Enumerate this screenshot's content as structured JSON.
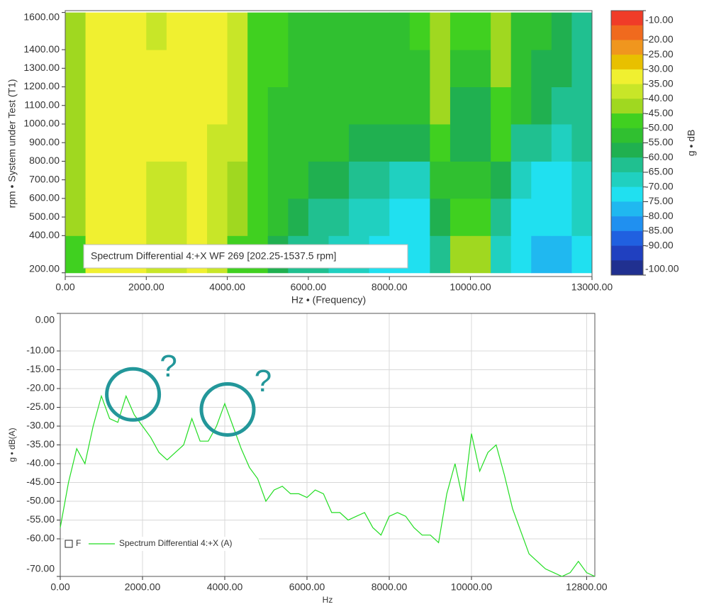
{
  "chart_data": [
    {
      "type": "heatmap",
      "label": "Spectrum Differential 4:+X WF 269 [202.25-1537.5 rpm]",
      "xlabel": "Hz • (Frequency)",
      "ylabel": "rpm • System under Test (T1)",
      "xlim": [
        0,
        13000
      ],
      "ylim": [
        180,
        1610
      ],
      "xticks": [
        {
          "value": 0,
          "label": "0.00"
        },
        {
          "value": 2000,
          "label": "2000.00"
        },
        {
          "value": 4000,
          "label": "4000.00"
        },
        {
          "value": 6000,
          "label": "6000.00"
        },
        {
          "value": 8000,
          "label": "8000.00"
        },
        {
          "value": 10000,
          "label": "10000.00"
        },
        {
          "value": 13000,
          "label": "13000.00"
        }
      ],
      "yticks": [
        {
          "value": 200,
          "label": "200.00"
        },
        {
          "value": 400,
          "label": "400.00"
        },
        {
          "value": 500,
          "label": "500.00"
        },
        {
          "value": 600,
          "label": "600.00"
        },
        {
          "value": 700,
          "label": "700.00"
        },
        {
          "value": 800,
          "label": "800.00"
        },
        {
          "value": 900,
          "label": "900.00"
        },
        {
          "value": 1000,
          "label": "1000.00"
        },
        {
          "value": 1100,
          "label": "1100.00"
        },
        {
          "value": 1200,
          "label": "1200.00"
        },
        {
          "value": 1300,
          "label": "1300.00"
        },
        {
          "value": 1400,
          "label": "1400.00"
        },
        {
          "value": 1600,
          "label": "1600.00"
        }
      ],
      "xbins": [
        0,
        500,
        1000,
        1500,
        2000,
        2500,
        3000,
        3500,
        4000,
        4500,
        5000,
        5500,
        6000,
        6500,
        7000,
        7500,
        8000,
        8500,
        9000,
        9500,
        10000,
        10500,
        11000,
        11500,
        12000,
        12500,
        13000
      ],
      "ybins": [
        200,
        400,
        600,
        800,
        1000,
        1200,
        1400,
        1600
      ],
      "z": [
        [
          -45,
          -33,
          -33,
          -31,
          -35,
          -36,
          -34,
          -36,
          -45,
          -48,
          -56,
          -60,
          -64,
          -66,
          -68,
          -70,
          -72,
          -73,
          -64,
          -42,
          -44,
          -68,
          -74,
          -76,
          -76,
          -70
        ],
        [
          -44,
          -33,
          -33,
          -31,
          -35,
          -35,
          -33,
          -35,
          -42,
          -47,
          -53,
          -56,
          -60,
          -63,
          -65,
          -67,
          -70,
          -70,
          -58,
          -46,
          -47,
          -63,
          -72,
          -74,
          -74,
          -68
        ],
        [
          -44,
          -33,
          -33,
          -31,
          -35,
          -35,
          -33,
          -35,
          -40,
          -47,
          -51,
          -52,
          -55,
          -58,
          -60,
          -62,
          -65,
          -65,
          -50,
          -50,
          -50,
          -55,
          -68,
          -70,
          -70,
          -66
        ],
        [
          -43,
          -32,
          -33,
          -30,
          -34,
          -34,
          -33,
          -35,
          -38,
          -46,
          -50,
          -50,
          -52,
          -54,
          -55,
          -56,
          -58,
          -58,
          -45,
          -55,
          -55,
          -48,
          -60,
          -64,
          -65,
          -64
        ],
        [
          -42,
          -31,
          -32,
          -30,
          -34,
          -34,
          -32,
          -34,
          -37,
          -46,
          -50,
          -50,
          -50,
          -52,
          -52,
          -53,
          -54,
          -54,
          -42,
          -55,
          -55,
          -45,
          -54,
          -58,
          -60,
          -62
        ],
        [
          -42,
          -31,
          -32,
          -30,
          -34,
          -34,
          -32,
          -34,
          -37,
          -46,
          -49,
          -50,
          -50,
          -51,
          -52,
          -52,
          -52,
          -50,
          -40,
          -50,
          -50,
          -42,
          -52,
          -55,
          -57,
          -60
        ],
        [
          -42,
          -32,
          -33,
          -31,
          -35,
          -34,
          -32,
          -34,
          -38,
          -46,
          -49,
          -50,
          -50,
          -51,
          -51,
          -52,
          -52,
          -48,
          -40,
          -46,
          -46,
          -42,
          -50,
          -54,
          -56,
          -60
        ]
      ],
      "colorbar": {
        "label": "g • dB",
        "lim": [
          -100,
          -10
        ],
        "ticks": [
          {
            "value": -10,
            "label": "-10.00"
          },
          {
            "value": -20,
            "label": "-20.00"
          },
          {
            "value": -25,
            "label": "-25.00"
          },
          {
            "value": -30,
            "label": "-30.00"
          },
          {
            "value": -35,
            "label": "-35.00"
          },
          {
            "value": -40,
            "label": "-40.00"
          },
          {
            "value": -45,
            "label": "-45.00"
          },
          {
            "value": -50,
            "label": "-50.00"
          },
          {
            "value": -55,
            "label": "-55.00"
          },
          {
            "value": -60,
            "label": "-60.00"
          },
          {
            "value": -65,
            "label": "-65.00"
          },
          {
            "value": -70,
            "label": "-70.00"
          },
          {
            "value": -75,
            "label": "-75.00"
          },
          {
            "value": -80,
            "label": "-80.00"
          },
          {
            "value": -85,
            "label": "-85.00"
          },
          {
            "value": -90,
            "label": "-90.00"
          },
          {
            "value": -100,
            "label": "-100.00"
          }
        ],
        "colors": [
          "#f03c28",
          "#f06a1e",
          "#f0961e",
          "#e8c000",
          "#f0f030",
          "#c8e628",
          "#a0d820",
          "#40d020",
          "#30c030",
          "#20b050",
          "#20c090",
          "#20d0c0",
          "#20e0f0",
          "#20b8f0",
          "#2090f0",
          "#2060e0",
          "#2040c0",
          "#203090"
        ]
      }
    },
    {
      "type": "line",
      "xlabel": "Hz",
      "ylabel": "g • dB(A)",
      "xlim": [
        0,
        13000
      ],
      "ylim": [
        -70,
        0
      ],
      "grid": true,
      "legend": "lower left",
      "legend_toggle": "F",
      "xticks": [
        {
          "value": 0,
          "label": "0.00"
        },
        {
          "value": 2000,
          "label": "2000.00"
        },
        {
          "value": 4000,
          "label": "4000.00"
        },
        {
          "value": 6000,
          "label": "6000.00"
        },
        {
          "value": 8000,
          "label": "8000.00"
        },
        {
          "value": 10000,
          "label": "10000.00"
        },
        {
          "value": 12800,
          "label": "12800.00"
        }
      ],
      "yticks": [
        {
          "value": 0,
          "label": "0.00"
        },
        {
          "value": -10,
          "label": "-10.00"
        },
        {
          "value": -15,
          "label": "-15.00"
        },
        {
          "value": -20,
          "label": "-20.00"
        },
        {
          "value": -25,
          "label": "-25.00"
        },
        {
          "value": -30,
          "label": "-30.00"
        },
        {
          "value": -35,
          "label": "-35.00"
        },
        {
          "value": -40,
          "label": "-40.00"
        },
        {
          "value": -45,
          "label": "-45.00"
        },
        {
          "value": -50,
          "label": "-50.00"
        },
        {
          "value": -55,
          "label": "-55.00"
        },
        {
          "value": -60,
          "label": "-60.00"
        },
        {
          "value": -70,
          "label": "-70.00"
        }
      ],
      "x": [
        0,
        200,
        400,
        600,
        800,
        1000,
        1200,
        1400,
        1600,
        1800,
        2000,
        2200,
        2400,
        2600,
        2800,
        3000,
        3200,
        3400,
        3600,
        3800,
        4000,
        4200,
        4400,
        4600,
        4800,
        5000,
        5200,
        5400,
        5600,
        5800,
        6000,
        6200,
        6400,
        6600,
        6800,
        7000,
        7200,
        7400,
        7600,
        7800,
        8000,
        8200,
        8400,
        8600,
        8800,
        9000,
        9200,
        9400,
        9600,
        9800,
        10000,
        10200,
        10400,
        10600,
        10800,
        11000,
        11200,
        11400,
        11600,
        11800,
        12000,
        12200,
        12400,
        12600,
        12800,
        13000
      ],
      "series": [
        {
          "name": "Spectrum Differential 4:+X (A)",
          "color": "#22dd22",
          "values": [
            -57,
            -45,
            -36,
            -40,
            -30,
            -22,
            -28,
            -29,
            -22,
            -27,
            -30,
            -33,
            -37,
            -39,
            -37,
            -35,
            -28,
            -34,
            -34,
            -30,
            -24,
            -30,
            -36,
            -41,
            -44,
            -50,
            -47,
            -46,
            -48,
            -48,
            -49,
            -47,
            -48,
            -53,
            -53,
            -55,
            -54,
            -53,
            -57,
            -59,
            -54,
            -53,
            -54,
            -57,
            -59,
            -59,
            -61,
            -48,
            -40,
            -50,
            -32,
            -42,
            -37,
            -35,
            -43,
            -52,
            -58,
            -64,
            -66,
            -68,
            -69,
            -70,
            -69,
            -66,
            -69,
            -70
          ]
        }
      ],
      "annotations": [
        {
          "text": "?",
          "x": 1700,
          "y": -21
        },
        {
          "text": "?",
          "x": 4000,
          "y": -25
        }
      ]
    }
  ]
}
